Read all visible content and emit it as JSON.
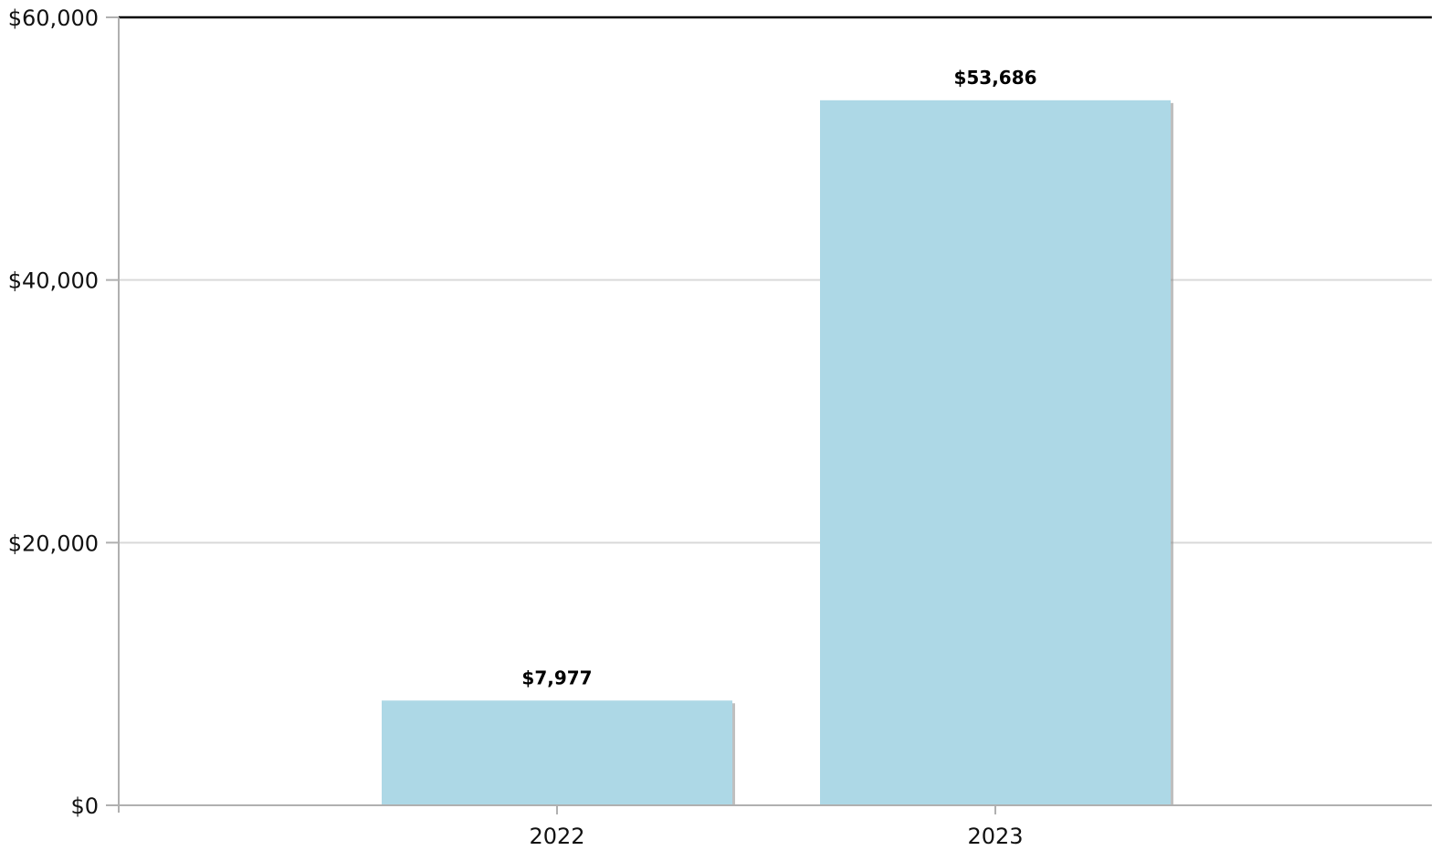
{
  "chart_data": {
    "type": "bar",
    "categories": [
      "2022",
      "2023"
    ],
    "values": [
      7977,
      53686
    ],
    "data_labels": [
      "$7,977",
      "$53,686"
    ],
    "ylim": [
      0,
      60000
    ],
    "y_ticks": [
      0,
      20000,
      40000,
      60000
    ],
    "y_tick_labels": [
      "$0",
      "$20,000",
      "$40,000",
      "$60,000"
    ],
    "title": "",
    "xlabel": "",
    "ylabel": "",
    "grid": true,
    "legend": "none",
    "colors": {
      "bar": "#add8e6",
      "bar_shadow": "#8a8a8a",
      "grid": "#d9d9d9",
      "axis": "#b0b0b0",
      "top_border": "#000000"
    }
  }
}
